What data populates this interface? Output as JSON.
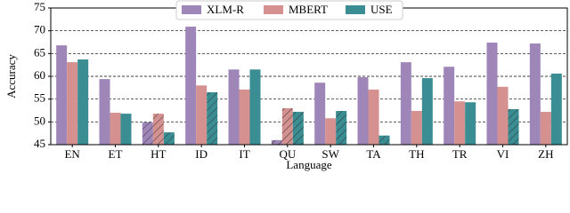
{
  "chart_data": {
    "type": "bar",
    "x_label": "Language",
    "y_label": "Accuracy",
    "categories": [
      "EN",
      "ET",
      "HT",
      "ID",
      "IT",
      "QU",
      "SW",
      "TA",
      "TH",
      "TR",
      "VI",
      "ZH"
    ],
    "series": [
      {
        "name": "XLM-R",
        "color": "#9e86b8",
        "values": [
          66.8,
          59.4,
          49.9,
          70.9,
          61.5,
          46.0,
          58.6,
          59.8,
          63.1,
          62.1,
          67.4,
          67.2
        ],
        "hatch": [
          false,
          false,
          true,
          false,
          false,
          true,
          false,
          false,
          false,
          false,
          false,
          false
        ]
      },
      {
        "name": "MBERT",
        "color": "#d4918f",
        "values": [
          63.1,
          52.0,
          51.8,
          58.0,
          57.1,
          53.0,
          50.8,
          57.1,
          52.4,
          54.5,
          57.7,
          52.2
        ],
        "hatch": [
          false,
          false,
          true,
          false,
          false,
          true,
          false,
          false,
          false,
          false,
          false,
          false
        ]
      },
      {
        "name": "USE",
        "color": "#3a8d93",
        "values": [
          63.7,
          51.8,
          47.7,
          56.5,
          61.5,
          52.2,
          52.4,
          47.0,
          59.6,
          54.3,
          52.8,
          60.6
        ],
        "hatch": [
          false,
          false,
          true,
          true,
          false,
          true,
          true,
          true,
          false,
          false,
          true,
          false
        ]
      }
    ],
    "ylim": [
      45,
      75
    ],
    "yticks": [
      45,
      50,
      55,
      60,
      65,
      70,
      75
    ],
    "grid": true,
    "legend": "top"
  }
}
